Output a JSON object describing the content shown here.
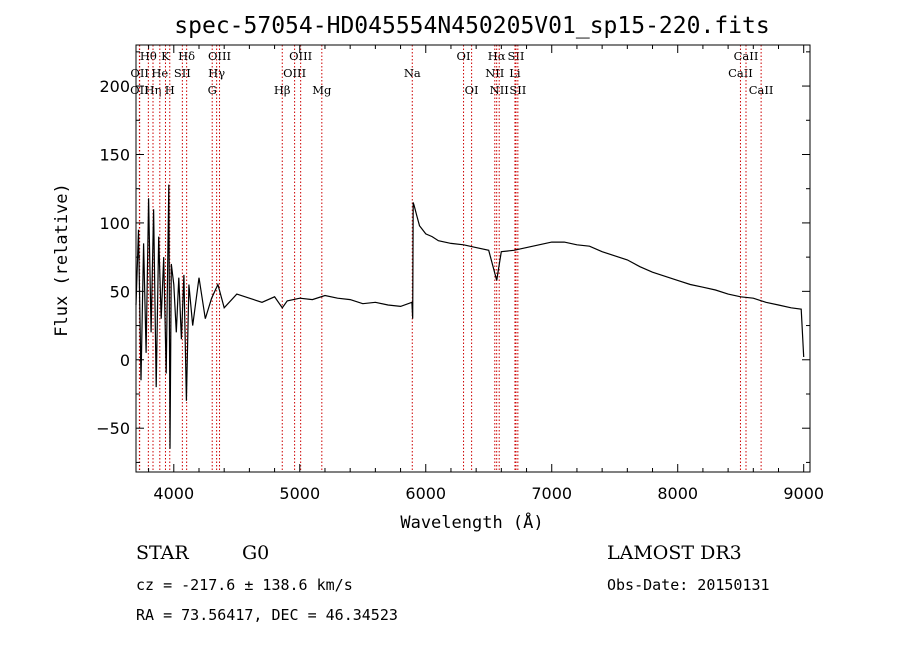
{
  "chart_data": {
    "type": "line",
    "title": "spec-57054-HD045554N450205V01_sp15-220.fits",
    "xlabel": "Wavelength (Å)",
    "ylabel": "Flux (relative)",
    "xlim": [
      3700,
      9050
    ],
    "ylim": [
      -82,
      230
    ],
    "x_ticks": [
      4000,
      5000,
      6000,
      7000,
      8000,
      9000
    ],
    "y_ticks": [
      -50,
      0,
      50,
      100,
      150,
      200
    ],
    "grid": false,
    "legend": "none",
    "series": [
      {
        "x": [
          3700,
          3720,
          3740,
          3760,
          3780,
          3800,
          3820,
          3840,
          3860,
          3880,
          3900,
          3920,
          3940,
          3960,
          3970,
          3980,
          4000,
          4020,
          4040,
          4060,
          4080,
          4100,
          4120,
          4150,
          4200,
          4250,
          4300,
          4350,
          4400,
          4500,
          4600,
          4700,
          4800,
          4861,
          4900,
          5000,
          5100,
          5200,
          5300,
          5400,
          5500,
          5600,
          5700,
          5800,
          5890,
          5896,
          5900,
          5910,
          5930,
          5950,
          6000,
          6050,
          6100,
          6200,
          6300,
          6400,
          6500,
          6563,
          6600,
          6700,
          6800,
          6900,
          7000,
          7100,
          7200,
          7300,
          7400,
          7500,
          7600,
          7700,
          7800,
          7900,
          8000,
          8100,
          8200,
          8300,
          8400,
          8500,
          8600,
          8700,
          8800,
          8900,
          8980,
          9000
        ],
        "y": [
          40,
          95,
          -15,
          85,
          5,
          118,
          20,
          110,
          -20,
          90,
          30,
          75,
          -10,
          128,
          -65,
          70,
          55,
          20,
          60,
          15,
          62,
          -30,
          55,
          25,
          60,
          30,
          45,
          55,
          38,
          48,
          45,
          42,
          46,
          38,
          43,
          45,
          44,
          47,
          45,
          44,
          41,
          42,
          40,
          39,
          42,
          30,
          115,
          112,
          105,
          98,
          92,
          90,
          87,
          85,
          84,
          82,
          80,
          58,
          79,
          80,
          82,
          84,
          86,
          86,
          84,
          83,
          79,
          76,
          73,
          68,
          64,
          61,
          58,
          55,
          53,
          51,
          48,
          46,
          45,
          42,
          40,
          38,
          37,
          2
        ]
      }
    ],
    "spectral_lines": [
      {
        "label": "Hθ",
        "x": 3798,
        "row": 0
      },
      {
        "label": "Hη",
        "x": 3835,
        "row": 2
      },
      {
        "label": "He",
        "x": 3889,
        "row": 1
      },
      {
        "label": "K",
        "x": 3934,
        "row": 0
      },
      {
        "label": "H",
        "x": 3968,
        "row": 2
      },
      {
        "label": "SII",
        "x": 4068,
        "row": 1
      },
      {
        "label": "Hδ",
        "x": 4102,
        "row": 0
      },
      {
        "label": "G",
        "x": 4305,
        "row": 2
      },
      {
        "label": "Hγ",
        "x": 4340,
        "row": 1
      },
      {
        "label": "OIII",
        "x": 4363,
        "row": 0
      },
      {
        "label": "Hβ",
        "x": 4861,
        "row": 2
      },
      {
        "label": "OIII",
        "x": 4959,
        "row": 1
      },
      {
        "label": "OIII",
        "x": 5007,
        "row": 0
      },
      {
        "label": "Mg",
        "x": 5175,
        "row": 2
      },
      {
        "label": "Na",
        "x": 5893,
        "row": 1
      },
      {
        "label": "OI",
        "x": 6300,
        "row": 0
      },
      {
        "label": "OI",
        "x": 6364,
        "row": 2
      },
      {
        "label": "NII",
        "x": 6548,
        "row": 1
      },
      {
        "label": "Hα",
        "x": 6563,
        "row": 0
      },
      {
        "label": "NII",
        "x": 6583,
        "row": 2
      },
      {
        "label": "SII",
        "x": 6716,
        "row": 0
      },
      {
        "label": "Li",
        "x": 6708,
        "row": 1
      },
      {
        "label": "SII",
        "x": 6731,
        "row": 2
      },
      {
        "label": "CaII",
        "x": 8498,
        "row": 1
      },
      {
        "label": "CaII",
        "x": 8542,
        "row": 0
      },
      {
        "label": "CaII",
        "x": 8662,
        "row": 2
      },
      {
        "label": "OII",
        "x": 3727,
        "row": 2
      },
      {
        "label": "OII",
        "x": 3729,
        "row": 1
      }
    ],
    "line_color": "#000000",
    "marker_color": "#cc0000"
  },
  "info": {
    "object_class": "STAR",
    "subclass": "G0",
    "survey": "LAMOST DR3",
    "redshift_text": "cz = -217.6 ± 138.6 km/s",
    "obs_date_text": "Obs-Date: 20150131",
    "coords_text": "RA =  73.56417, DEC =  46.34523"
  }
}
